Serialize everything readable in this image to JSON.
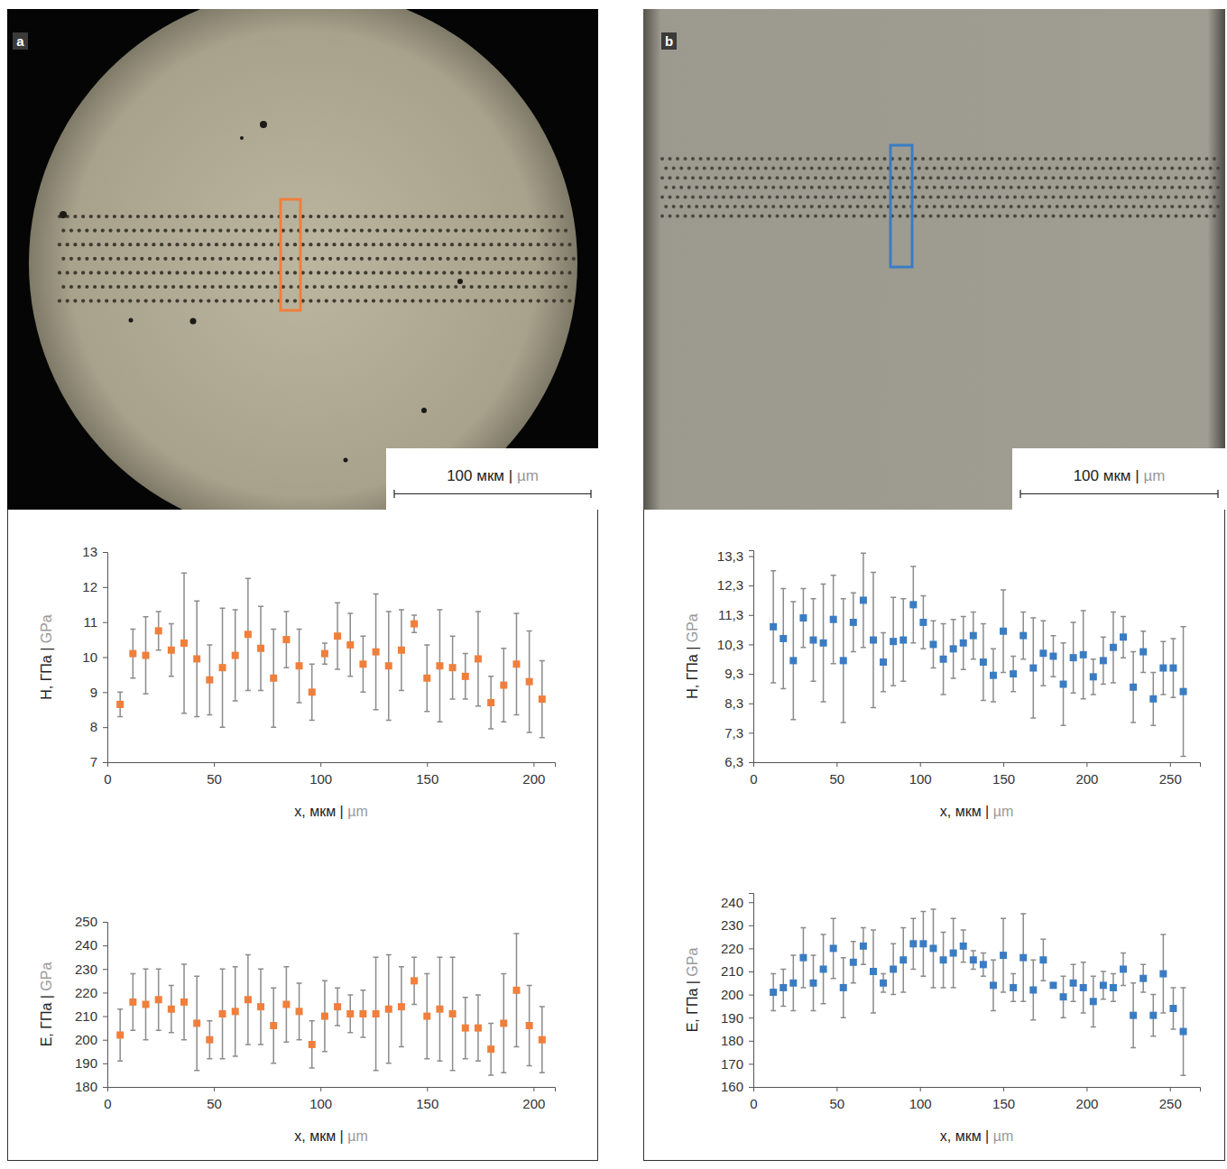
{
  "chart_data": [
    {
      "type": "scatter",
      "x_label": "x, мкм | µm",
      "y_label": "H, ГПа | GPa",
      "color": "#f07f3c",
      "marker": "square",
      "x": [
        6,
        12,
        18,
        24,
        30,
        36,
        42,
        48,
        54,
        60,
        66,
        72,
        78,
        84,
        90,
        96,
        102,
        108,
        114,
        120,
        126,
        132,
        138,
        144,
        150,
        156,
        162,
        168,
        174,
        180,
        186,
        192,
        198,
        204
      ],
      "values": [
        8.65,
        10.1,
        10.05,
        10.75,
        10.2,
        10.4,
        9.95,
        9.35,
        9.7,
        10.05,
        10.65,
        10.25,
        9.4,
        10.5,
        9.75,
        9.0,
        10.1,
        10.6,
        10.35,
        9.8,
        10.15,
        9.75,
        10.2,
        10.95,
        9.4,
        9.75,
        9.7,
        9.45,
        9.95,
        8.7,
        9.2,
        9.8,
        9.3,
        8.8
      ],
      "errors": [
        0.35,
        0.7,
        1.1,
        0.55,
        0.75,
        2.0,
        1.65,
        1.0,
        1.7,
        1.3,
        1.6,
        1.2,
        1.4,
        0.8,
        1.05,
        0.8,
        0.3,
        0.95,
        0.9,
        0.8,
        1.65,
        1.55,
        1.15,
        0.25,
        0.95,
        1.6,
        0.9,
        0.65,
        1.35,
        0.75,
        1.05,
        1.45,
        1.45,
        1.1
      ],
      "xlim": [
        0,
        210
      ],
      "xticks": [
        0,
        50,
        100,
        150,
        200
      ],
      "ylim": [
        7,
        13
      ],
      "yticks": [
        7,
        8,
        9,
        10,
        11,
        12,
        13
      ]
    },
    {
      "type": "scatter",
      "x_label": "x, мкм | µm",
      "y_label": "E, ГПа | GPa",
      "color": "#f07f3c",
      "marker": "square",
      "x": [
        6,
        12,
        18,
        24,
        30,
        36,
        42,
        48,
        54,
        60,
        66,
        72,
        78,
        84,
        90,
        96,
        102,
        108,
        114,
        120,
        126,
        132,
        138,
        144,
        150,
        156,
        162,
        168,
        174,
        180,
        186,
        192,
        198,
        204
      ],
      "values": [
        202,
        216,
        215,
        217,
        213,
        216,
        207,
        200,
        211,
        212,
        217,
        214,
        206,
        215,
        212,
        198,
        210,
        214,
        211,
        211,
        211,
        213,
        214,
        225,
        210,
        213,
        211,
        205,
        205,
        196,
        207,
        221,
        206,
        200
      ],
      "errors": [
        11,
        12,
        15,
        13,
        10,
        16,
        20,
        8,
        19,
        19,
        19,
        16,
        16,
        16,
        12,
        10,
        15,
        8,
        8,
        10,
        24,
        23,
        17,
        10,
        18,
        22,
        24,
        13,
        14,
        11,
        21,
        24,
        17,
        14
      ],
      "xlim": [
        0,
        210
      ],
      "xticks": [
        0,
        50,
        100,
        150,
        200
      ],
      "ylim": [
        180,
        250
      ],
      "yticks": [
        180,
        190,
        200,
        210,
        220,
        230,
        240,
        250
      ]
    },
    {
      "type": "scatter",
      "x_label": "x, мкм | µm",
      "y_label": "H, ГПа | GPa",
      "color": "#3a7cc4",
      "marker": "square",
      "x": [
        12,
        18,
        24,
        30,
        36,
        42,
        48,
        54,
        60,
        66,
        72,
        78,
        84,
        90,
        96,
        102,
        108,
        114,
        120,
        126,
        132,
        138,
        144,
        150,
        156,
        162,
        168,
        174,
        180,
        186,
        192,
        198,
        204,
        210,
        216,
        222,
        228,
        234,
        240,
        246,
        252,
        258
      ],
      "values": [
        10.9,
        10.5,
        9.75,
        11.2,
        10.45,
        10.35,
        11.15,
        9.75,
        11.05,
        11.8,
        10.45,
        9.7,
        10.4,
        10.45,
        11.65,
        11.05,
        10.3,
        9.8,
        10.15,
        10.35,
        10.6,
        9.7,
        9.25,
        10.75,
        9.3,
        10.6,
        9.5,
        10.0,
        9.9,
        8.95,
        9.85,
        9.95,
        9.2,
        9.75,
        10.2,
        10.55,
        8.85,
        10.05,
        8.45,
        9.5,
        9.5,
        8.7
      ],
      "errors": [
        1.9,
        1.7,
        2.0,
        1.0,
        1.4,
        2.0,
        1.5,
        2.1,
        1.0,
        1.6,
        2.3,
        1.0,
        1.5,
        1.4,
        1.3,
        0.9,
        0.8,
        1.2,
        1.0,
        0.9,
        0.8,
        1.3,
        0.9,
        1.4,
        0.6,
        0.8,
        1.7,
        1.1,
        0.7,
        1.4,
        1.2,
        1.5,
        0.6,
        0.8,
        1.2,
        0.7,
        1.2,
        0.7,
        0.9,
        0.9,
        1.0,
        2.2
      ],
      "xlim": [
        0,
        268
      ],
      "xticks": [
        0,
        50,
        100,
        150,
        200,
        250
      ],
      "ylim": [
        6.3,
        13.5
      ],
      "yticks": [
        {
          "value": 6.3,
          "label": "6,3"
        },
        {
          "value": 7.3,
          "label": "7,3"
        },
        {
          "value": 8.3,
          "label": "8,3"
        },
        {
          "value": 9.3,
          "label": "9,3"
        },
        {
          "value": 10.3,
          "label": "10,3"
        },
        {
          "value": 11.3,
          "label": "11,3"
        },
        {
          "value": 12.3,
          "label": "12,3"
        },
        {
          "value": 13.3,
          "label": "13,3"
        }
      ]
    },
    {
      "type": "scatter",
      "x_label": "x, мкм | µm",
      "y_label": "E, ГПа | GPa",
      "color": "#3a7cc4",
      "marker": "square",
      "x": [
        12,
        18,
        24,
        30,
        36,
        42,
        48,
        54,
        60,
        66,
        72,
        78,
        84,
        90,
        96,
        102,
        108,
        114,
        120,
        126,
        132,
        138,
        144,
        150,
        156,
        162,
        168,
        174,
        180,
        186,
        192,
        198,
        204,
        210,
        216,
        222,
        228,
        234,
        240,
        246,
        252,
        258
      ],
      "values": [
        201,
        203,
        205,
        216,
        205,
        211,
        220,
        203,
        214,
        221,
        210,
        205,
        211,
        215,
        222,
        222,
        220,
        215,
        218,
        221,
        215,
        213,
        204,
        217,
        203,
        216,
        202,
        215,
        204,
        199,
        205,
        203,
        197,
        204,
        203,
        211,
        191,
        207,
        191,
        209,
        194,
        184
      ],
      "errors": [
        8,
        8,
        12,
        13,
        12,
        15,
        13,
        13,
        9,
        8,
        18,
        4,
        11,
        14,
        11,
        14,
        17,
        12,
        15,
        7,
        4,
        5,
        11,
        16,
        6,
        19,
        13,
        9,
        1,
        9,
        8,
        11,
        11,
        6,
        6,
        7,
        14,
        6,
        9,
        17,
        9,
        19
      ],
      "xlim": [
        0,
        268
      ],
      "xticks": [
        0,
        50,
        100,
        150,
        200,
        250
      ],
      "ylim": [
        160,
        244
      ],
      "yticks": [
        160,
        170,
        180,
        190,
        200,
        210,
        220,
        230,
        240
      ]
    }
  ],
  "images": [
    {
      "letter": "a",
      "scale_bar": "100 мкм | µm"
    },
    {
      "letter": "b",
      "scale_bar": "100 мкм | µm"
    }
  ]
}
